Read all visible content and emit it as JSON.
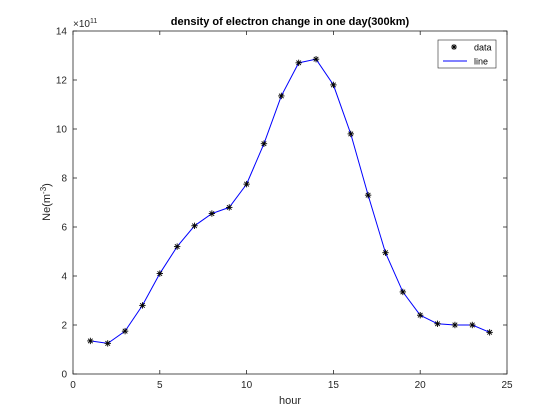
{
  "chart_data": {
    "type": "line",
    "title": "density of electron change in one day(300km)",
    "xlabel": "hour",
    "ylabel": "Ne(m^-3)",
    "y_exponent_label": "×10",
    "y_exponent": "11",
    "xlim": [
      0,
      25
    ],
    "ylim": [
      0,
      14
    ],
    "xticks": [
      "0",
      "5",
      "10",
      "15",
      "20",
      "25"
    ],
    "yticks": [
      "0",
      "2",
      "4",
      "6",
      "8",
      "10",
      "12",
      "14"
    ],
    "grid": false,
    "legend_position": "top-right",
    "series": [
      {
        "name": "data",
        "marker": "*",
        "color": "#000000",
        "x": [
          1,
          2,
          3,
          4,
          5,
          6,
          7,
          8,
          9,
          10,
          11,
          12,
          13,
          14,
          15,
          16,
          17,
          18,
          19,
          20,
          21,
          22,
          23,
          24
        ],
        "values": [
          1.35,
          1.25,
          1.75,
          2.8,
          4.1,
          5.2,
          6.05,
          6.55,
          6.8,
          7.75,
          9.4,
          11.35,
          12.7,
          12.85,
          11.8,
          9.8,
          7.3,
          4.95,
          3.35,
          2.4,
          2.05,
          2.0,
          2.0,
          1.7
        ]
      },
      {
        "name": "line",
        "color": "#0000ff",
        "x": [
          1,
          2,
          3,
          4,
          5,
          6,
          7,
          8,
          9,
          10,
          11,
          12,
          13,
          14,
          15,
          16,
          17,
          18,
          19,
          20,
          21,
          22,
          23,
          24
        ],
        "values": [
          1.35,
          1.25,
          1.75,
          2.8,
          4.1,
          5.2,
          6.05,
          6.55,
          6.8,
          7.75,
          9.4,
          11.35,
          12.7,
          12.85,
          11.8,
          9.8,
          7.3,
          4.95,
          3.35,
          2.4,
          2.05,
          2.0,
          2.0,
          1.7
        ]
      }
    ]
  }
}
